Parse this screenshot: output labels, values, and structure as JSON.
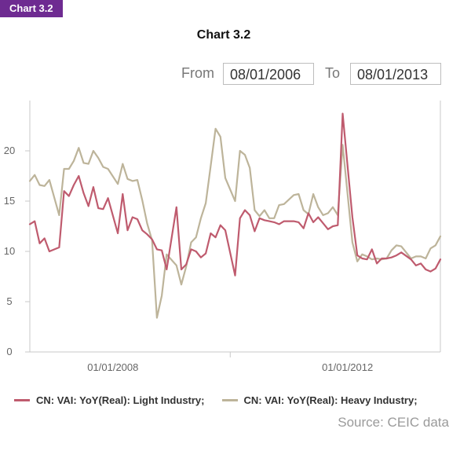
{
  "badge": "Chart 3.2",
  "title": "Chart 3.2",
  "range": {
    "from_label": "From",
    "from_value": "08/01/2006",
    "to_label": "To",
    "to_value": "08/01/2013"
  },
  "source": "Source: CEIC data",
  "colors": {
    "light": "#bf5b6e",
    "heavy": "#bdb49a",
    "axis": "#c9c9c9",
    "tick": "#666666"
  },
  "chart_data": {
    "type": "line",
    "xlabel": "",
    "ylabel": "",
    "ylim": [
      0,
      25
    ],
    "yticks": [
      0,
      5,
      10,
      15,
      20
    ],
    "xlim": [
      "2006-08",
      "2013-08"
    ],
    "xticks": [
      {
        "label": "01/01/2008",
        "value": "2008-01"
      },
      {
        "label": "01/01/2012",
        "value": "2012-01"
      }
    ],
    "legend_position": "bottom",
    "x": [
      "2006-08",
      "2006-09",
      "2006-10",
      "2006-11",
      "2006-12",
      "2007-02",
      "2007-03",
      "2007-04",
      "2007-05",
      "2007-06",
      "2007-07",
      "2007-08",
      "2007-09",
      "2007-10",
      "2007-11",
      "2007-12",
      "2008-02",
      "2008-03",
      "2008-04",
      "2008-05",
      "2008-06",
      "2008-07",
      "2008-08",
      "2008-09",
      "2008-10",
      "2008-11",
      "2008-12",
      "2009-02",
      "2009-03",
      "2009-04",
      "2009-05",
      "2009-06",
      "2009-07",
      "2009-08",
      "2009-09",
      "2009-10",
      "2009-11",
      "2009-12",
      "2010-02",
      "2010-03",
      "2010-04",
      "2010-05",
      "2010-06",
      "2010-07",
      "2010-08",
      "2010-09",
      "2010-10",
      "2010-11",
      "2010-12",
      "2011-02",
      "2011-03",
      "2011-04",
      "2011-05",
      "2011-06",
      "2011-07",
      "2011-08",
      "2011-09",
      "2011-10",
      "2011-11",
      "2011-12",
      "2012-02",
      "2012-03",
      "2012-04",
      "2012-05",
      "2012-06",
      "2012-07",
      "2012-08",
      "2012-09",
      "2012-10",
      "2012-11",
      "2012-12",
      "2013-02",
      "2013-03",
      "2013-04",
      "2013-05",
      "2013-06",
      "2013-07",
      "2013-08"
    ],
    "series": [
      {
        "name": "CN: VAI: YoY(Real): Light Industry;",
        "values": [
          12.7,
          13.0,
          10.8,
          11.3,
          10.0,
          10.4,
          16.0,
          15.5,
          16.6,
          17.5,
          15.8,
          14.5,
          16.4,
          14.3,
          14.2,
          15.3,
          11.8,
          15.7,
          12.1,
          13.4,
          13.2,
          12.1,
          11.7,
          11.2,
          10.2,
          10.1,
          8.2,
          14.4,
          8.2,
          8.7,
          10.2,
          10.0,
          9.4,
          9.8,
          11.8,
          11.4,
          12.6,
          12.1,
          7.6,
          13.3,
          14.1,
          13.6,
          12.0,
          13.3,
          13.1,
          13.0,
          12.9,
          12.7,
          13.0,
          13.0,
          12.9,
          12.3,
          13.8,
          12.9,
          13.4,
          12.8,
          12.2,
          12.5,
          12.6,
          23.7,
          13.4,
          9.6,
          9.3,
          9.2,
          10.2,
          8.8,
          9.3,
          9.3,
          9.4,
          9.6,
          9.9,
          9.2,
          8.6,
          8.8,
          8.2,
          8.0,
          8.3,
          9.2
        ]
      },
      {
        "name": "CN: VAI: YoY(Real): Heavy Industry;",
        "values": [
          17.0,
          17.6,
          16.6,
          16.5,
          17.1,
          13.6,
          18.2,
          18.2,
          19.0,
          20.3,
          18.8,
          18.7,
          20.0,
          19.3,
          18.4,
          18.2,
          16.7,
          18.7,
          17.2,
          17.0,
          17.1,
          15.1,
          12.8,
          11.1,
          3.4,
          5.6,
          9.7,
          8.6,
          6.7,
          8.5,
          10.9,
          11.4,
          13.3,
          14.8,
          18.5,
          22.2,
          21.4,
          17.3,
          15.0,
          20.0,
          19.6,
          18.3,
          14.1,
          13.5,
          14.1,
          13.3,
          13.3,
          14.6,
          14.7,
          15.6,
          15.7,
          14.1,
          13.7,
          15.7,
          14.4,
          13.6,
          13.8,
          14.4,
          13.6,
          20.6,
          10.9,
          9.0,
          9.7,
          9.5,
          9.2,
          9.3,
          9.2,
          9.3,
          10.1,
          10.6,
          10.5,
          9.3,
          9.5,
          9.5,
          9.3,
          10.3,
          10.6,
          11.5
        ]
      }
    ]
  }
}
